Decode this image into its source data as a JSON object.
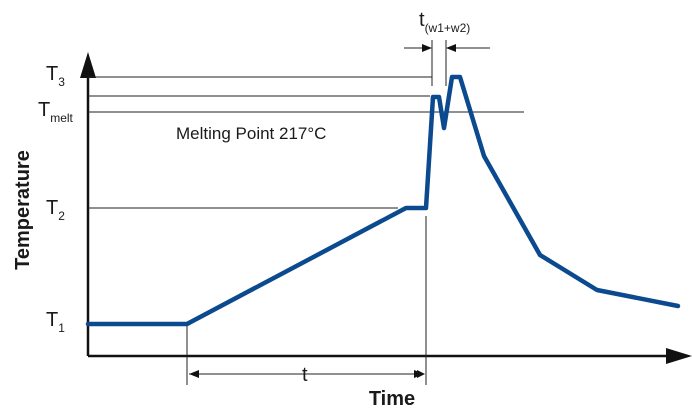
{
  "chart_data": {
    "type": "line",
    "xlabel": "Time",
    "ylabel": "Temperature",
    "grid": false,
    "legend": "none",
    "line_color": "#0b4a8e",
    "levels": [
      {
        "name": "T",
        "sub": "1"
      },
      {
        "name": "T",
        "sub": "2"
      },
      {
        "name": "T",
        "sub": "melt"
      },
      {
        "name": "T",
        "sub": "3"
      }
    ],
    "annotations": {
      "melting_point": "Melting Point 217°C",
      "duration": "t",
      "peak_window_main": "t",
      "peak_window_sub": "(w1+w2)"
    }
  }
}
